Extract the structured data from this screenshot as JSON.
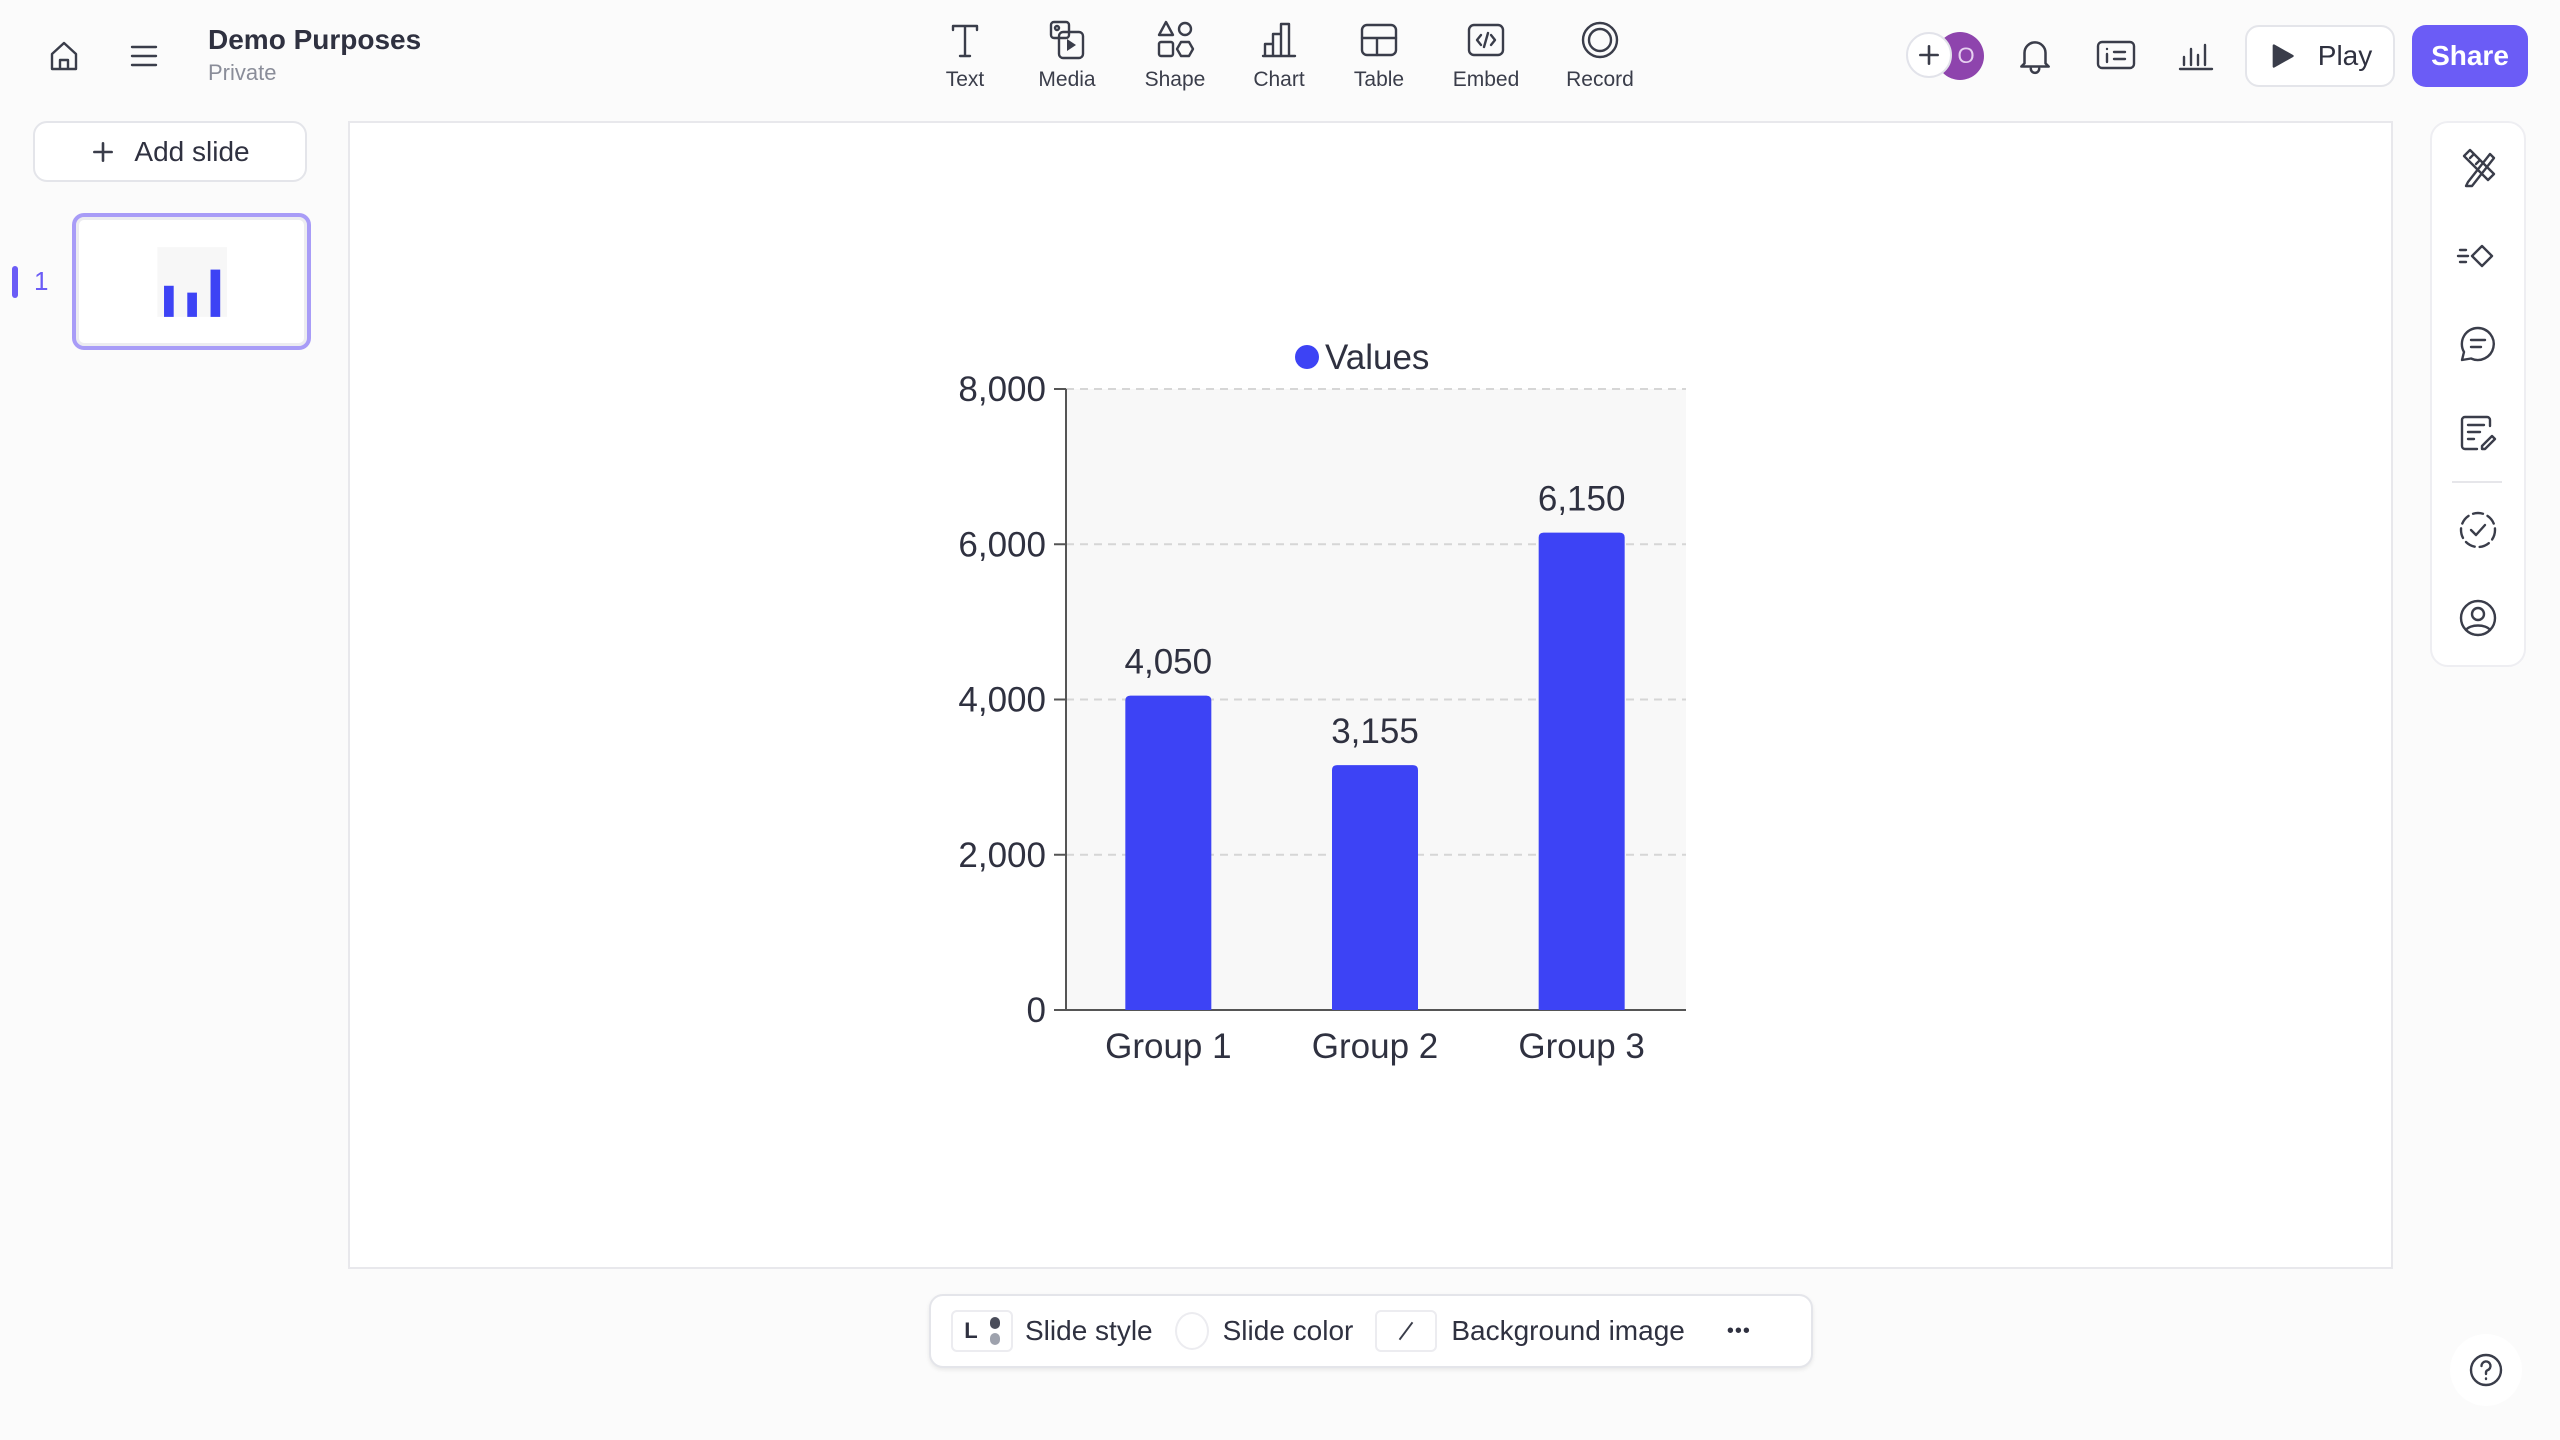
{
  "header": {
    "title": "Demo Purposes",
    "subtitle": "Private"
  },
  "toolbar": [
    {
      "label": "Text",
      "icon": "text-icon"
    },
    {
      "label": "Media",
      "icon": "media-icon"
    },
    {
      "label": "Shape",
      "icon": "shape-icon"
    },
    {
      "label": "Chart",
      "icon": "chart-icon"
    },
    {
      "label": "Table",
      "icon": "table-icon"
    },
    {
      "label": "Embed",
      "icon": "embed-icon"
    },
    {
      "label": "Record",
      "icon": "record-icon"
    }
  ],
  "actions": {
    "avatar_initial": "O",
    "play_label": "Play",
    "share_label": "Share"
  },
  "sidebar": {
    "add_slide_label": "Add slide",
    "slides": [
      {
        "number": "1"
      }
    ]
  },
  "bottom_bar": {
    "style_letter": "L",
    "slide_style": "Slide style",
    "slide_color": "Slide color",
    "background_image": "Background image",
    "more": "•••"
  },
  "colors": {
    "accent": "#6b5cf6",
    "bar": "#3d43f5",
    "avatar": "#8e44ad"
  },
  "chart_data": {
    "type": "bar",
    "categories": [
      "Group 1",
      "Group 2",
      "Group 3"
    ],
    "series": [
      {
        "name": "Values",
        "values": [
          4050,
          3155,
          6150
        ]
      }
    ],
    "data_labels": [
      "4,050",
      "3,155",
      "6,150"
    ],
    "yticks": [
      0,
      2000,
      4000,
      6000,
      8000
    ],
    "ytick_labels": [
      "0",
      "2,000",
      "4,000",
      "6,000",
      "8,000"
    ],
    "ylim": [
      0,
      8000
    ],
    "grid": true,
    "legend": "top"
  }
}
